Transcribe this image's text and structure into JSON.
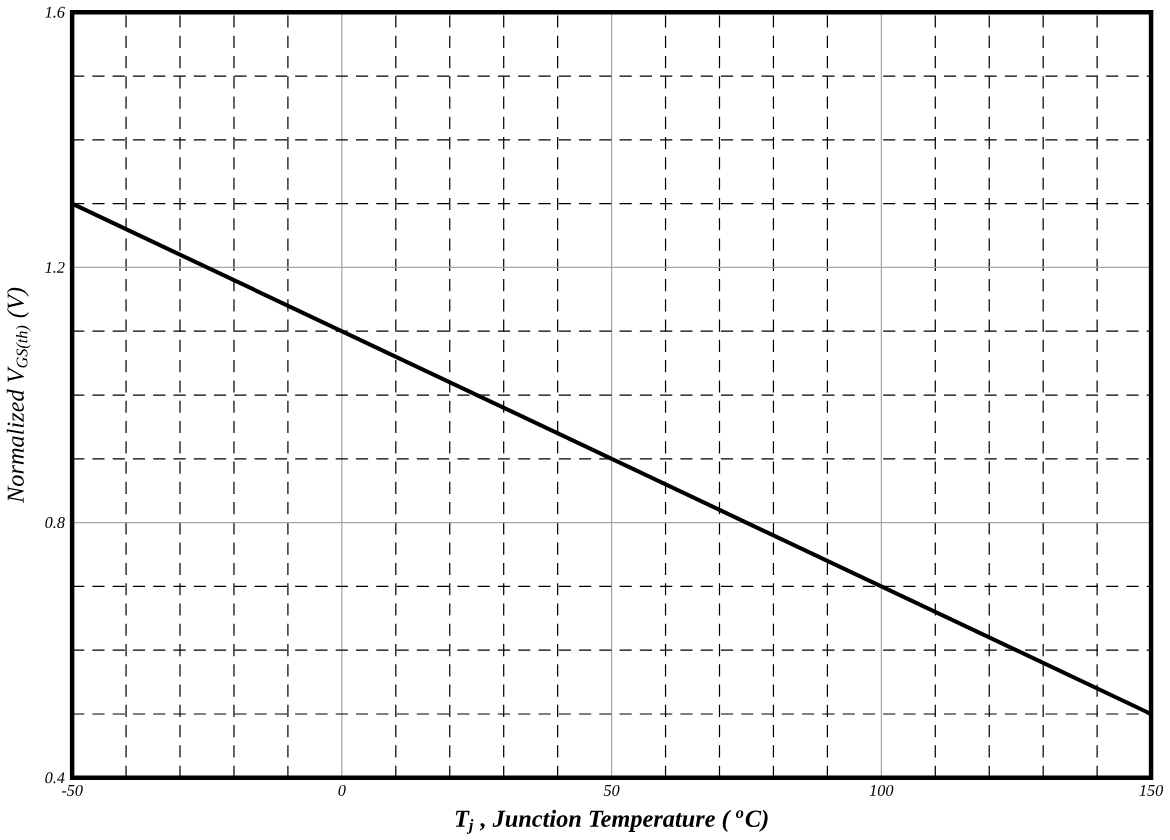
{
  "chart_data": {
    "type": "line",
    "xlabel": "T$_{j}$ , Junction Temperature ( $^{o}$C)",
    "ylabel": "Normalized V$_{GS(th)}$ (V)",
    "x": [
      -50,
      0,
      50,
      100,
      150
    ],
    "series": [
      {
        "color": "#000000",
        "values": [
          1.3,
          1.1,
          0.9,
          0.7,
          0.5
        ]
      }
    ],
    "xlim": [
      -50,
      150
    ],
    "ylim": [
      0.4,
      1.6
    ],
    "xticks": [
      -50,
      0,
      50,
      100,
      150
    ],
    "yticks": [
      0.4,
      0.8,
      1.2,
      1.6
    ],
    "grid": true,
    "marker": "none",
    "line_style": "solid"
  }
}
